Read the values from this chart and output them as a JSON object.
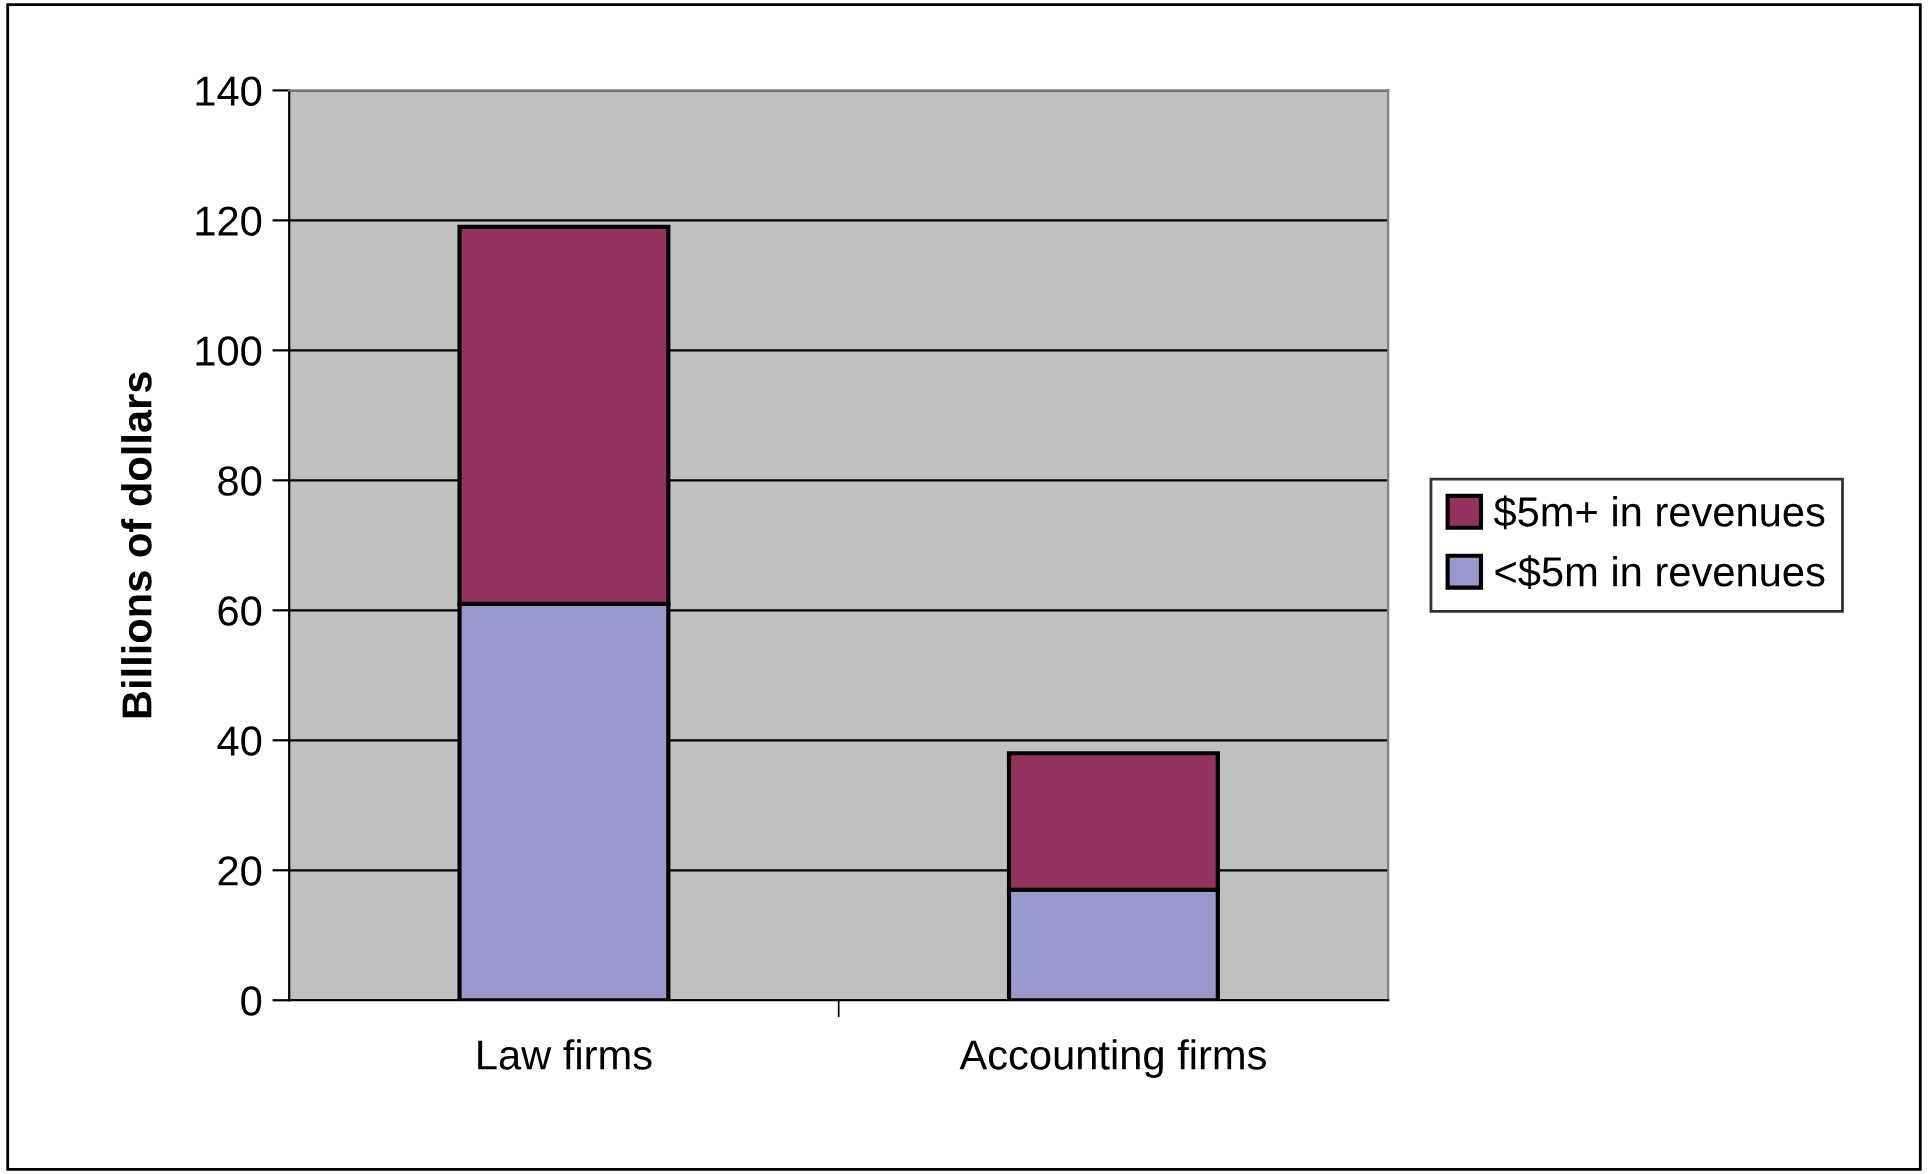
{
  "chart_data": {
    "type": "bar",
    "stacked": true,
    "ylabel": "Billions of dollars",
    "categories": [
      "Law firms",
      "Accounting firms"
    ],
    "series": [
      {
        "name": "<$5m in revenues",
        "color": "#9999cc",
        "values": [
          61,
          17
        ]
      },
      {
        "name": "$5m+ in revenues",
        "color": "#923360",
        "values": [
          58,
          21
        ]
      }
    ],
    "ylim": [
      0,
      140
    ],
    "yticks": [
      0,
      20,
      40,
      60,
      80,
      100,
      120,
      140
    ],
    "grid": "y",
    "legend": "right"
  }
}
